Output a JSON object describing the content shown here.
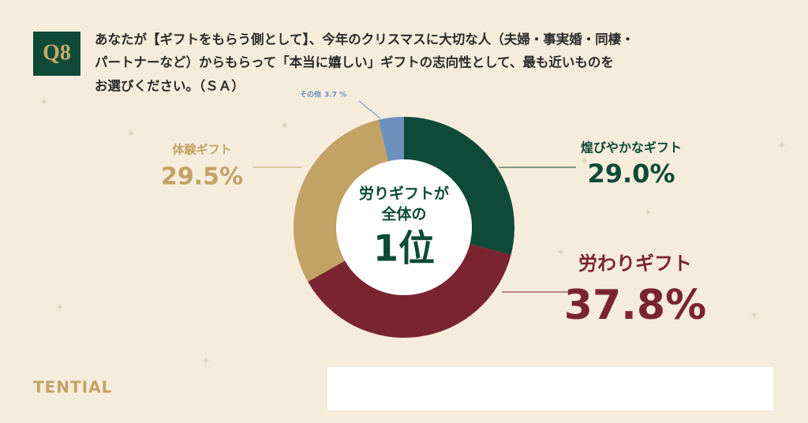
{
  "header": {
    "badge": "Q8",
    "question": [
      "あなたが【ギフトをもらう側として】、今年のクリスマスに大切な人（夫婦・事実婚・同棲・",
      "パートナーなど）からもらって「本当に嬉しい」ギフトの志向性として、最も近いものを",
      "お選びください。（ＳＡ）"
    ]
  },
  "chart_data": {
    "type": "donut",
    "categories": [
      "煌びやかなギフト",
      "労わりギフト",
      "体験ギフト",
      "その他"
    ],
    "values": [
      29.0,
      37.8,
      29.5,
      3.7
    ],
    "value_labels": [
      "29.0%",
      "37.8%",
      "29.5%",
      "3.7 %"
    ],
    "colors": [
      "#0e4a37",
      "#7b2431",
      "#c2a265",
      "#6b90be"
    ],
    "legend_colors": [
      "#0e4a37",
      "#c2a265",
      "#24467e",
      "#6b90be"
    ],
    "legend": "bottom-right"
  },
  "center_text": [
    "労りギフトが",
    "全体の",
    "1位"
  ],
  "brand": "TENTIAL"
}
